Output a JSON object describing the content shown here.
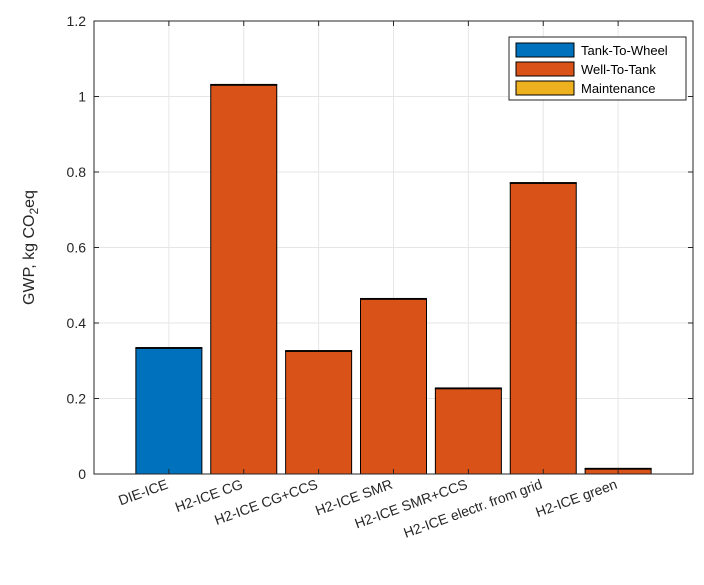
{
  "chart_data": {
    "type": "bar",
    "stacked": true,
    "title": "",
    "xlabel": "",
    "ylabel_parts": {
      "main": "GWP, kg CO",
      "sub": "2",
      "tail": "eq"
    },
    "ylim": [
      0,
      1.2
    ],
    "yticks": [
      0,
      0.2,
      0.4,
      0.6,
      0.8,
      1,
      1.2
    ],
    "ytick_labels": [
      "0",
      "0.2",
      "0.4",
      "0.6",
      "0.8",
      "1",
      "1.2"
    ],
    "grid": true,
    "legend_position": "top-right",
    "categories": [
      "DIE-ICE",
      "H2-ICE CG",
      "H2-ICE CG+CCS",
      "H2-ICE SMR",
      "H2-ICE SMR+CCS",
      "H2-ICE electr. from grid",
      "H2-ICE green"
    ],
    "series": [
      {
        "name": "Tank-To-Wheel",
        "color": "#0072BD",
        "values": [
          0.333,
          0,
          0,
          0,
          0,
          0,
          0
        ]
      },
      {
        "name": "Well-To-Tank",
        "color": "#D95319",
        "values": [
          0,
          1.03,
          0.325,
          0.463,
          0.226,
          0.77,
          0.013
        ]
      },
      {
        "name": "Maintenance",
        "color": "#EDB120",
        "values": [
          0.002,
          0.002,
          0.002,
          0.002,
          0.002,
          0.002,
          0.002
        ]
      }
    ]
  }
}
